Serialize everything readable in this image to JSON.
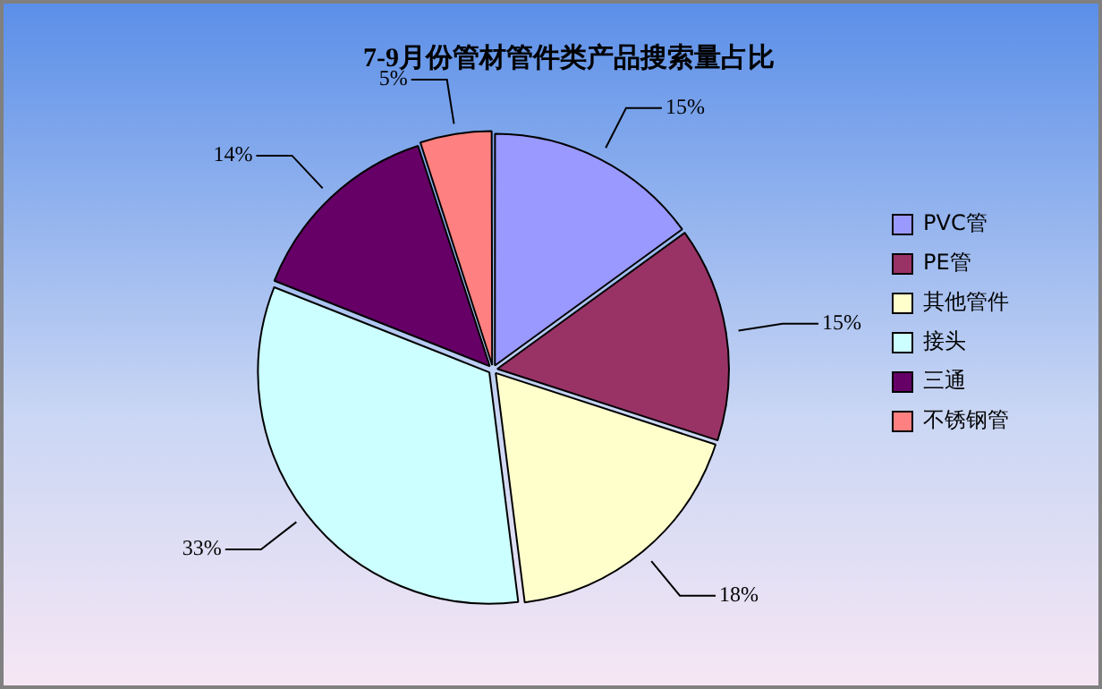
{
  "chart_data": {
    "type": "pie",
    "title": "7-9月份管材管件类产品搜索量占比",
    "categories": [
      "PVC管",
      "PE管",
      "其他管件",
      "接头",
      "三通",
      "不锈钢管"
    ],
    "values": [
      15,
      15,
      18,
      33,
      14,
      5
    ],
    "value_labels": [
      "15%",
      "15%",
      "18%",
      "33%",
      "14%",
      "5%"
    ],
    "colors": [
      "#9999ff",
      "#993366",
      "#ffffcc",
      "#ccffff",
      "#660066",
      "#ff8080"
    ],
    "legend": "right"
  }
}
